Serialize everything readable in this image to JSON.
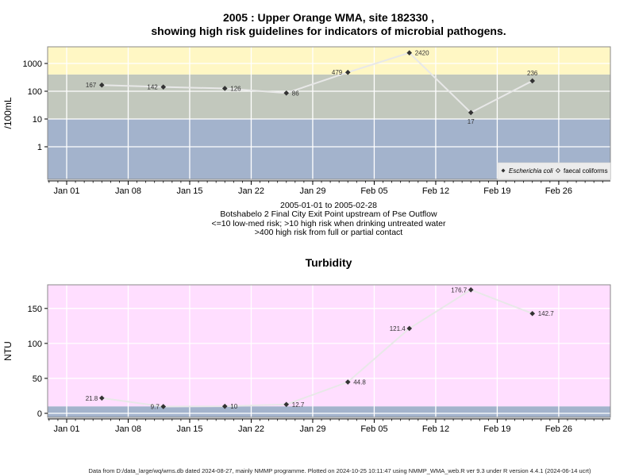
{
  "title_line1": "2005 : Upper Orange WMA, site 182330 ,",
  "title_line2": "showing high risk guidelines for indicators of microbial pathogens.",
  "info": [
    "2005-01-01 to 2005-02-28",
    "Botshabelo 2 Final City Exit Point upstream of Pse Outflow",
    "<=10 low-med risk; >10 high risk when drinking untreated water",
    ">400 high risk from full or partial contact"
  ],
  "footer": "Data from D:/data_large/wq/wms.db dated 2024-08-27, mainly NMMP programme. Plotted on 2024-10-25 10:11:47 using NMMP_WMA_web.R ver 9.3 under R version 4.4.1 (2024-06-14 ucrt)",
  "chart_data": [
    {
      "type": "line",
      "ylabel": "/100mL",
      "yscale": "log",
      "x_tick_labels": [
        "Jan 01",
        "Jan 08",
        "Jan 15",
        "Jan 22",
        "Jan 29",
        "Feb 05",
        "Feb 12",
        "Feb 19",
        "Feb 26"
      ],
      "x_ticks": [
        "2005-01-01",
        "2005-01-08",
        "2005-01-15",
        "2005-01-22",
        "2005-01-29",
        "2005-02-05",
        "2005-02-12",
        "2005-02-19",
        "2005-02-26"
      ],
      "y_ticks": [
        1,
        10,
        100,
        1000
      ],
      "y_tick_labels": [
        "1",
        "10",
        "100",
        "1000"
      ],
      "bands": [
        {
          "from": 0,
          "to": 10,
          "color": "#a3b3cc"
        },
        {
          "from": 10,
          "to": 400,
          "color": "#c2c8bd"
        },
        {
          "from": 400,
          "to": null,
          "color": "#fff7c4"
        }
      ],
      "series": [
        {
          "name": "Escherichia coli",
          "x": [
            "2005-01-05",
            "2005-01-12",
            "2005-01-19",
            "2005-01-26",
            "2005-02-02",
            "2005-02-09",
            "2005-02-16",
            "2005-02-23"
          ],
          "values": [
            167,
            142,
            126,
            86,
            479,
            2420,
            17,
            236
          ],
          "labels": [
            "167",
            "142",
            "126",
            "86",
            "479",
            "2420",
            "17",
            "236"
          ]
        }
      ],
      "legend": [
        "Escherichia coli",
        "faecal coliforms"
      ],
      "legend_position": "bottom-right"
    },
    {
      "type": "line",
      "title": "Turbidity",
      "ylabel": "NTU",
      "x_tick_labels": [
        "Jan 01",
        "Jan 08",
        "Jan 15",
        "Jan 22",
        "Jan 29",
        "Feb 05",
        "Feb 12",
        "Feb 19",
        "Feb 26"
      ],
      "x_ticks": [
        "2005-01-01",
        "2005-01-08",
        "2005-01-15",
        "2005-01-22",
        "2005-01-29",
        "2005-02-05",
        "2005-02-12",
        "2005-02-19",
        "2005-02-26"
      ],
      "y_ticks": [
        0,
        50,
        100,
        150
      ],
      "y_tick_labels": [
        "0",
        "50",
        "100",
        "150"
      ],
      "bands": [
        {
          "from": null,
          "to": 10,
          "color": "#a3b3cc"
        },
        {
          "from": 10,
          "to": null,
          "color": "#ffdeff"
        }
      ],
      "series": [
        {
          "x": [
            "2005-01-05",
            "2005-01-12",
            "2005-01-19",
            "2005-01-26",
            "2005-02-02",
            "2005-02-09",
            "2005-02-16",
            "2005-02-23"
          ],
          "values": [
            21.8,
            9.7,
            10,
            12.7,
            44.8,
            121.4,
            176.7,
            142.7
          ],
          "labels": [
            "21.8",
            "9.7",
            "10",
            "12.7",
            "44.8",
            "121.4",
            "176.7",
            "142.7"
          ]
        }
      ]
    }
  ]
}
